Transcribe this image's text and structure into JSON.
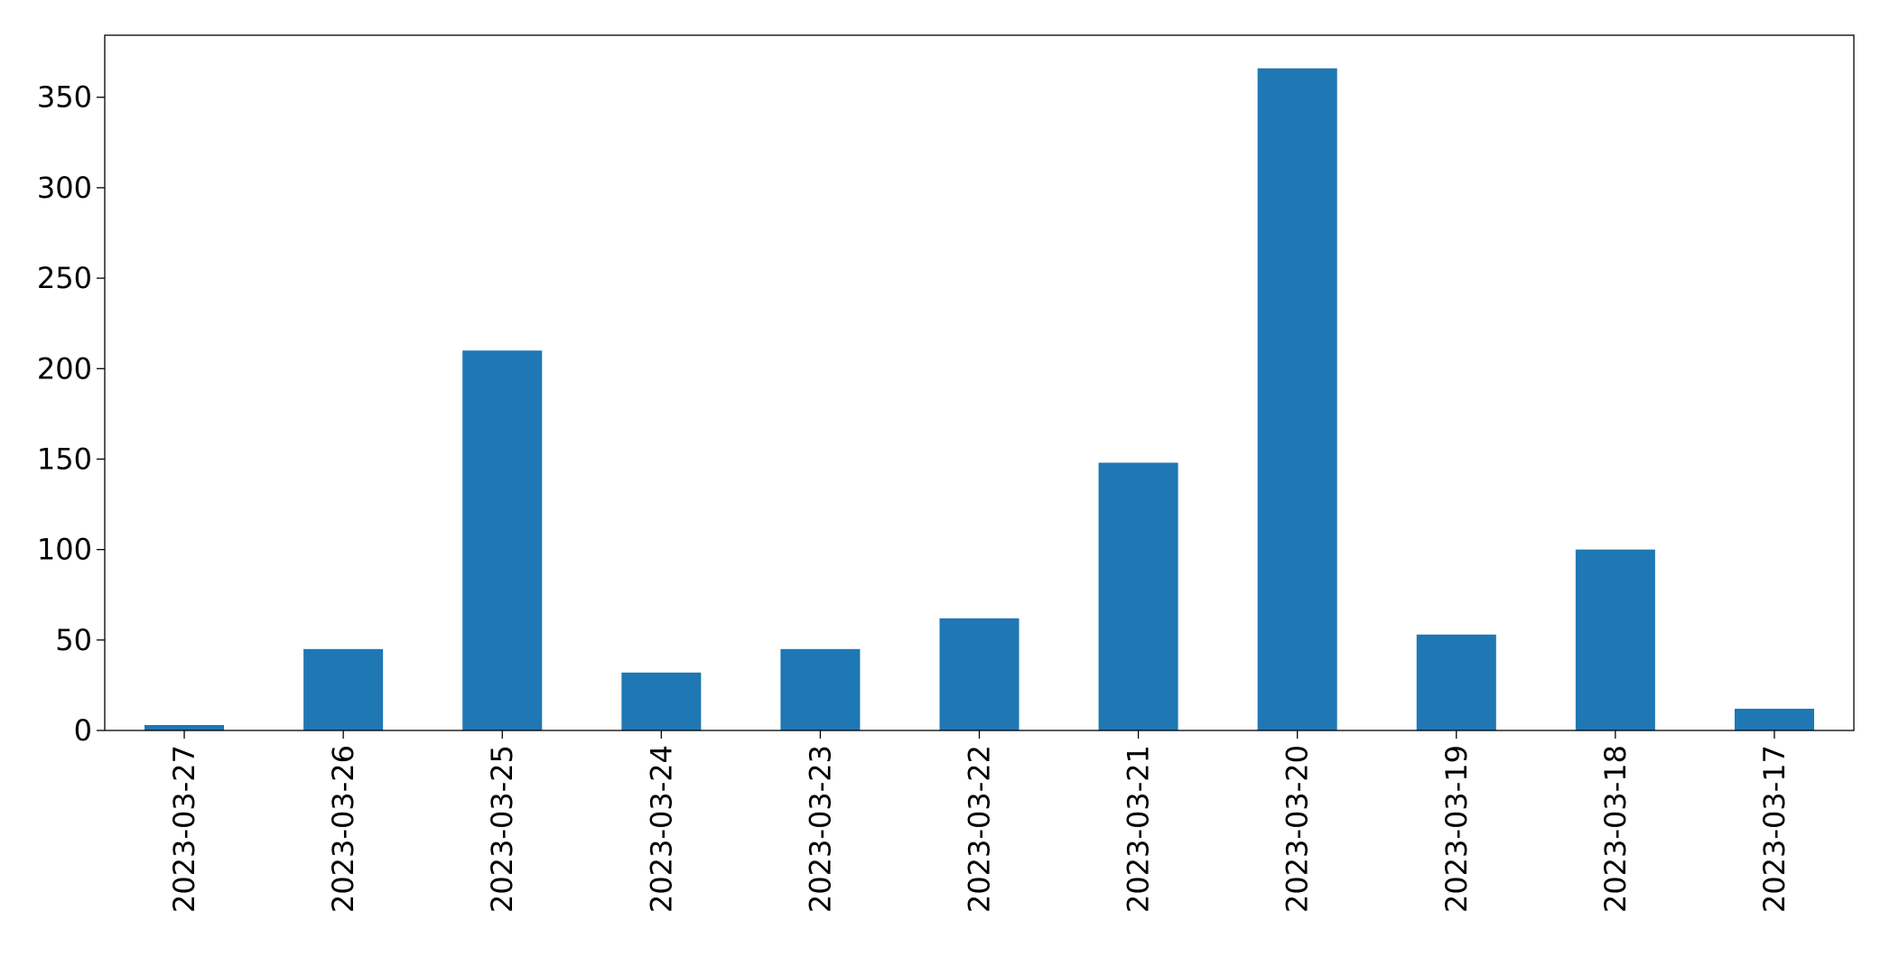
{
  "chart_data": {
    "type": "bar",
    "categories": [
      "2023-03-27",
      "2023-03-26",
      "2023-03-25",
      "2023-03-24",
      "2023-03-23",
      "2023-03-22",
      "2023-03-21",
      "2023-03-20",
      "2023-03-19",
      "2023-03-18",
      "2023-03-17"
    ],
    "values": [
      3,
      45,
      210,
      32,
      45,
      62,
      148,
      366,
      53,
      100,
      12
    ],
    "color": "#1f77b4",
    "ylim": [
      0,
      384.3
    ],
    "yticks": [
      0,
      50,
      100,
      150,
      200,
      250,
      300,
      350
    ],
    "grid": false
  }
}
